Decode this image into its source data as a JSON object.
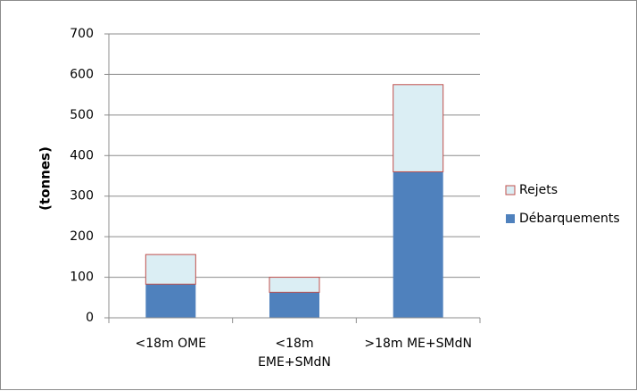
{
  "chart_data": {
    "type": "bar",
    "stacked": true,
    "categories": [
      [
        "<18m OME"
      ],
      [
        "<18m",
        "EME+SMdN"
      ],
      [
        ">18m ME+SMdN"
      ]
    ],
    "series": [
      {
        "name": "Débarquements",
        "values": [
          83,
          63,
          360
        ],
        "color": "#4f81bd"
      },
      {
        "name": "Rejets",
        "values": [
          73,
          37,
          215
        ],
        "color": "#dbeef4",
        "edge": "#c0504d"
      }
    ],
    "ylabel": "(tonnes)",
    "ylim": [
      0,
      700
    ],
    "yticks": [
      0,
      100,
      200,
      300,
      400,
      500,
      600,
      700
    ],
    "gridlines": true,
    "legend": "right",
    "legend_order": [
      "Rejets",
      "Débarquements"
    ]
  }
}
